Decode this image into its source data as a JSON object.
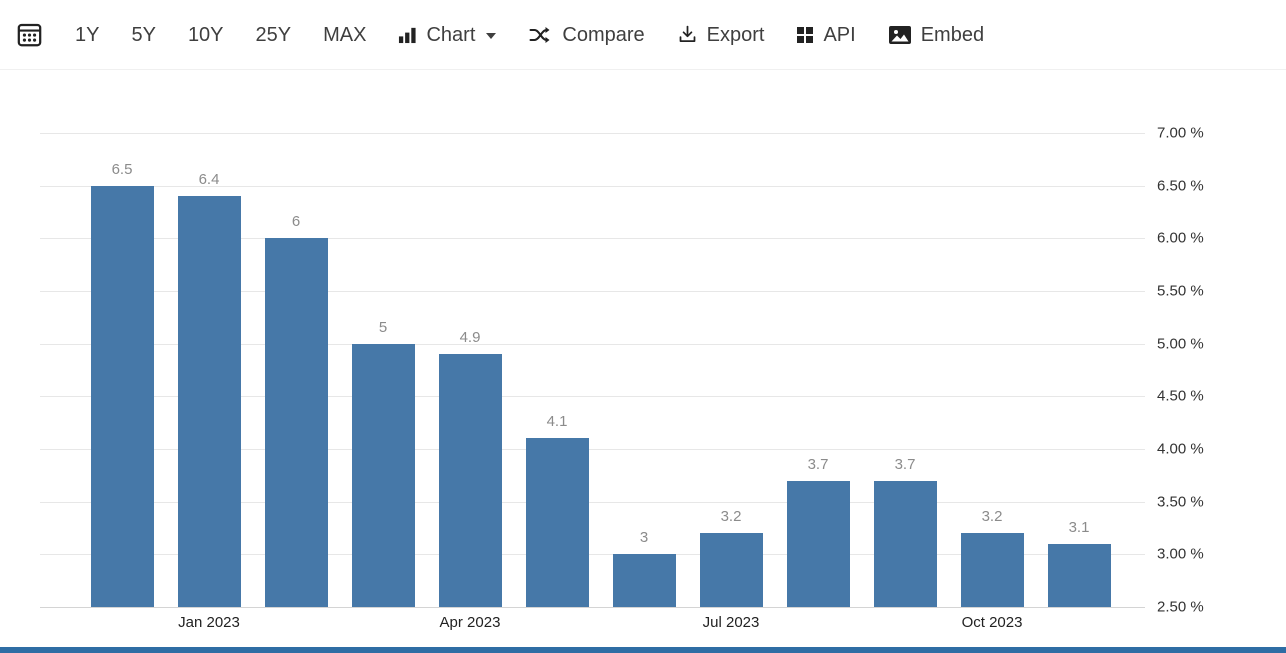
{
  "toolbar": {
    "calendar_button": {
      "icon": "calendar-icon"
    },
    "range_buttons": [
      {
        "label": "1Y"
      },
      {
        "label": "5Y"
      },
      {
        "label": "10Y"
      },
      {
        "label": "25Y"
      },
      {
        "label": "MAX"
      }
    ],
    "chart_menu": {
      "label": "Chart",
      "icon": "bar-chart-icon",
      "caret": "caret-down-icon"
    },
    "compare_button": {
      "label": "Compare",
      "icon": "shuffle-icon"
    },
    "export_button": {
      "label": "Export",
      "icon": "download-icon"
    },
    "api_button": {
      "label": "API",
      "icon": "grid-icon"
    },
    "embed_button": {
      "label": "Embed",
      "icon": "image-icon"
    }
  },
  "chart_data": {
    "type": "bar",
    "values": [
      6.5,
      6.4,
      6,
      5,
      4.9,
      4.1,
      3,
      3.2,
      3.7,
      3.7,
      3.2,
      3.1
    ],
    "bar_labels": [
      "6.5",
      "6.4",
      "6",
      "5",
      "4.9",
      "4.1",
      "3",
      "3.2",
      "3.7",
      "3.7",
      "3.2",
      "3.1"
    ],
    "x_tick_labels": [
      {
        "label": "Jan 2023",
        "bar_index": 1
      },
      {
        "label": "Apr 2023",
        "bar_index": 4
      },
      {
        "label": "Jul 2023",
        "bar_index": 7
      },
      {
        "label": "Oct 2023",
        "bar_index": 10
      }
    ],
    "y_tick_labels": [
      "7.00 %",
      "6.50 %",
      "6.00 %",
      "5.50 %",
      "5.00 %",
      "4.50 %",
      "4.00 %",
      "3.50 %",
      "3.00 %",
      "2.50 %"
    ],
    "ylim": [
      2.5,
      7.0
    ],
    "grid": true,
    "legend": "none",
    "y_axis_position": "right",
    "bar_color": "#4678a8",
    "bar_label_color": "#8b8b8b"
  },
  "colors": {
    "bar": "#4678a8",
    "toolbar_text": "#3f3f3f",
    "gridline": "#e7e7e7",
    "footer_strip": "#2e6da4"
  }
}
